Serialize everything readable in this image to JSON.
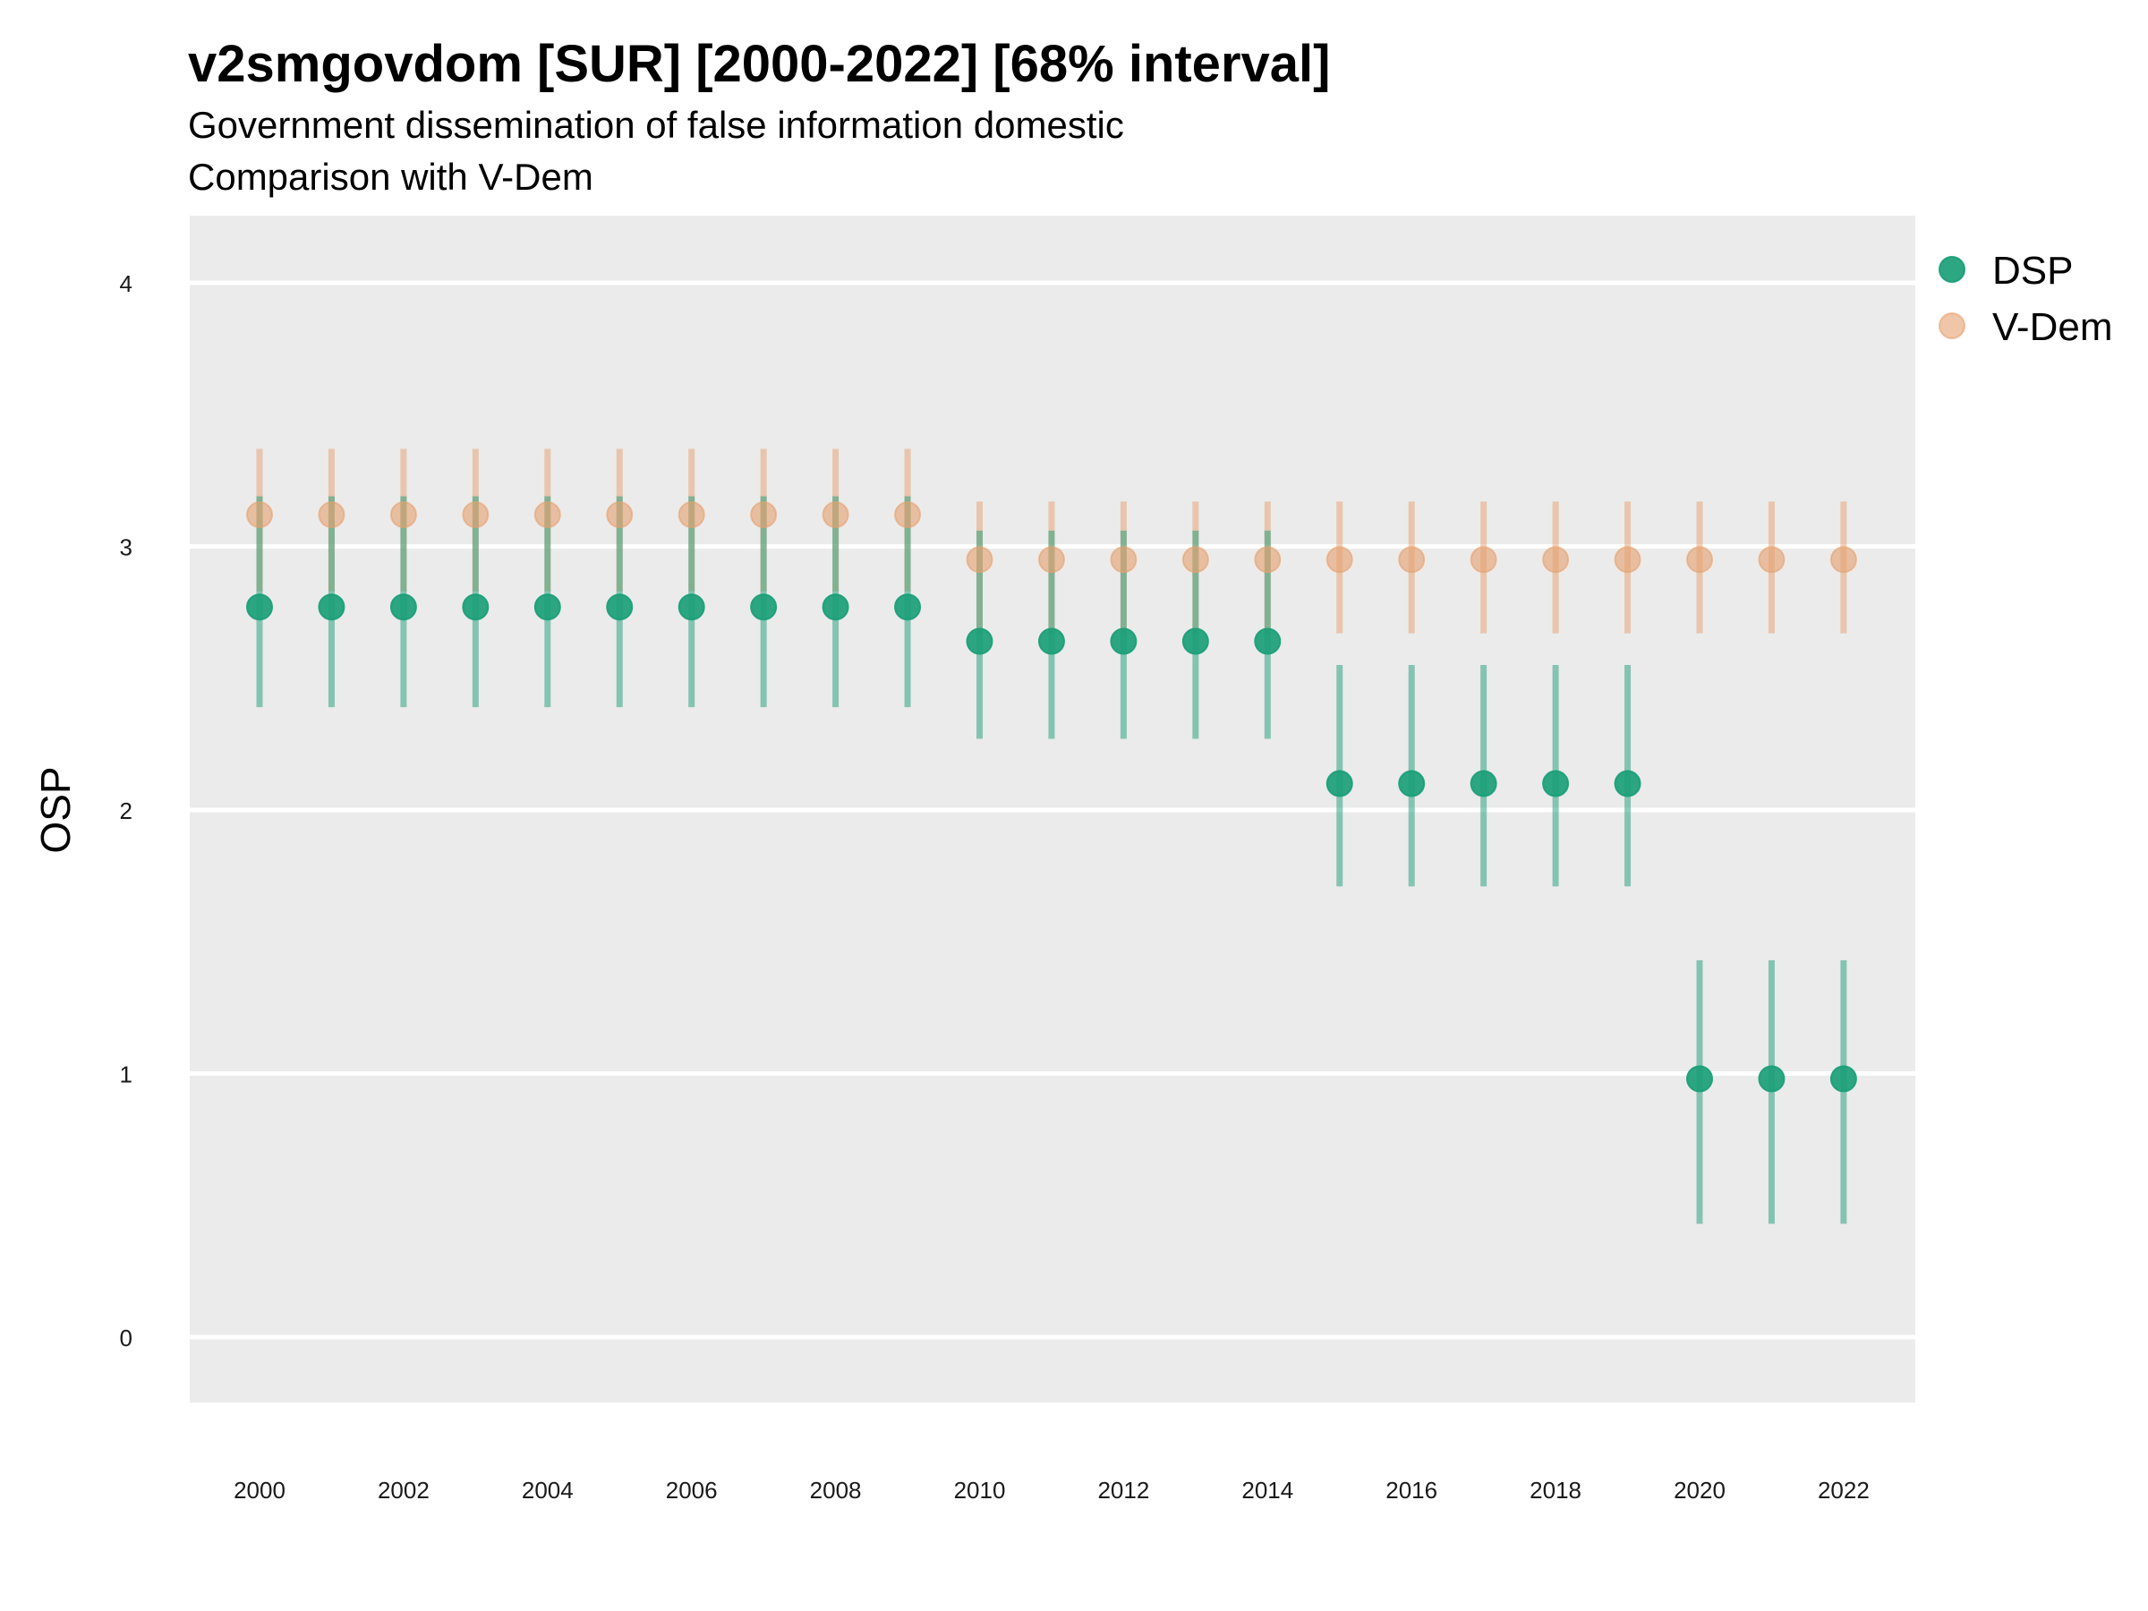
{
  "title": "v2smgovdom [SUR] [2000-2022] [68% interval]",
  "subtitle_line1": "Government dissemination of false information domestic",
  "subtitle_line2": "Comparison with V-Dem",
  "chart_data": {
    "type": "scatter",
    "title": "v2smgovdom [SUR] [2000-2022] [68% interval]",
    "ylabel": "OSP",
    "xlabel": "",
    "ylim": [
      -0.25,
      4.25
    ],
    "xlim": [
      1999,
      2023
    ],
    "y_ticks": [
      0,
      1,
      2,
      3,
      4
    ],
    "x_ticks": [
      2000,
      2002,
      2004,
      2006,
      2008,
      2010,
      2012,
      2014,
      2016,
      2018,
      2020,
      2022
    ],
    "grid": true,
    "legend_position": "right",
    "x": [
      2000,
      2001,
      2002,
      2003,
      2004,
      2005,
      2006,
      2007,
      2008,
      2009,
      2010,
      2011,
      2012,
      2013,
      2014,
      2015,
      2016,
      2017,
      2018,
      2019,
      2020,
      2021,
      2022
    ],
    "series": [
      {
        "name": "V-Dem",
        "color": "#e6a06e",
        "values": [
          3.12,
          3.12,
          3.12,
          3.12,
          3.12,
          3.12,
          3.12,
          3.12,
          3.12,
          3.12,
          2.95,
          2.95,
          2.95,
          2.95,
          2.95,
          2.95,
          2.95,
          2.95,
          2.95,
          2.95,
          2.95,
          2.95,
          2.95
        ],
        "lower": [
          2.83,
          2.83,
          2.83,
          2.83,
          2.83,
          2.83,
          2.83,
          2.83,
          2.83,
          2.83,
          2.67,
          2.67,
          2.67,
          2.67,
          2.67,
          2.67,
          2.67,
          2.67,
          2.67,
          2.67,
          2.67,
          2.67,
          2.67
        ],
        "upper": [
          3.37,
          3.37,
          3.37,
          3.37,
          3.37,
          3.37,
          3.37,
          3.37,
          3.37,
          3.37,
          3.17,
          3.17,
          3.17,
          3.17,
          3.17,
          3.17,
          3.17,
          3.17,
          3.17,
          3.17,
          3.17,
          3.17,
          3.17
        ]
      },
      {
        "name": "DSP",
        "color": "#1b9e77",
        "values": [
          2.77,
          2.77,
          2.77,
          2.77,
          2.77,
          2.77,
          2.77,
          2.77,
          2.77,
          2.77,
          2.64,
          2.64,
          2.64,
          2.64,
          2.64,
          2.1,
          2.1,
          2.1,
          2.1,
          2.1,
          0.98,
          0.98,
          0.98
        ],
        "lower": [
          2.39,
          2.39,
          2.39,
          2.39,
          2.39,
          2.39,
          2.39,
          2.39,
          2.39,
          2.39,
          2.27,
          2.27,
          2.27,
          2.27,
          2.27,
          1.71,
          1.71,
          1.71,
          1.71,
          1.71,
          0.43,
          0.43,
          0.43
        ],
        "upper": [
          3.19,
          3.19,
          3.19,
          3.19,
          3.19,
          3.19,
          3.19,
          3.19,
          3.19,
          3.19,
          3.06,
          3.06,
          3.06,
          3.06,
          3.06,
          2.55,
          2.55,
          2.55,
          2.55,
          2.55,
          1.43,
          1.43,
          1.43
        ]
      }
    ],
    "legend": [
      {
        "label": "DSP",
        "color": "#1b9e77"
      },
      {
        "label": "V-Dem",
        "color": "#e6a06e"
      }
    ]
  }
}
